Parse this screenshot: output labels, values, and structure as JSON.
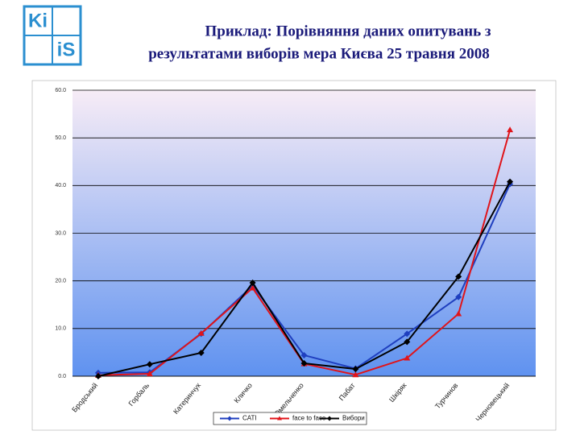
{
  "logo": [
    "Ki",
    "iS"
  ],
  "chart_data": {
    "type": "line",
    "title": [
      "Приклад: Порівняння даних опитувань з",
      "результатами виборів мера Києва 25 травня 2008"
    ],
    "categories": [
      "Бродський",
      "Горбаль",
      "Катеринчук",
      "Кличко",
      "Омельченко",
      "Пабат",
      "Шкіряк",
      "Турчинов",
      "Черновецький"
    ],
    "series": [
      {
        "name": "CATI",
        "color": "#1f3fbf",
        "marker": "diamond",
        "values": [
          0.7,
          0.8,
          8.9,
          19.0,
          4.4,
          1.6,
          8.9,
          16.6,
          40.3
        ]
      },
      {
        "name": "face to face",
        "color": "#e0141a",
        "marker": "triangle",
        "values": [
          0.2,
          0.5,
          9.0,
          18.5,
          2.6,
          0.3,
          3.8,
          13.1,
          51.7
        ]
      },
      {
        "name": "Вибори",
        "color": "#000000",
        "marker": "diamond",
        "values": [
          0.0,
          2.5,
          4.9,
          19.6,
          2.7,
          1.5,
          7.2,
          20.9,
          40.8
        ]
      }
    ],
    "ylim": [
      0,
      60
    ],
    "yticks": [
      {
        "value": 0,
        "label": "0.0"
      },
      {
        "value": 10,
        "label": "10.0"
      },
      {
        "value": 20,
        "label": "20.0"
      },
      {
        "value": 30,
        "label": "30.0"
      },
      {
        "value": 40,
        "label": "40.0"
      },
      {
        "value": 50,
        "label": "50.0"
      },
      {
        "value": 60,
        "label": "60.0"
      }
    ],
    "grid": true,
    "legend": "bottom"
  }
}
